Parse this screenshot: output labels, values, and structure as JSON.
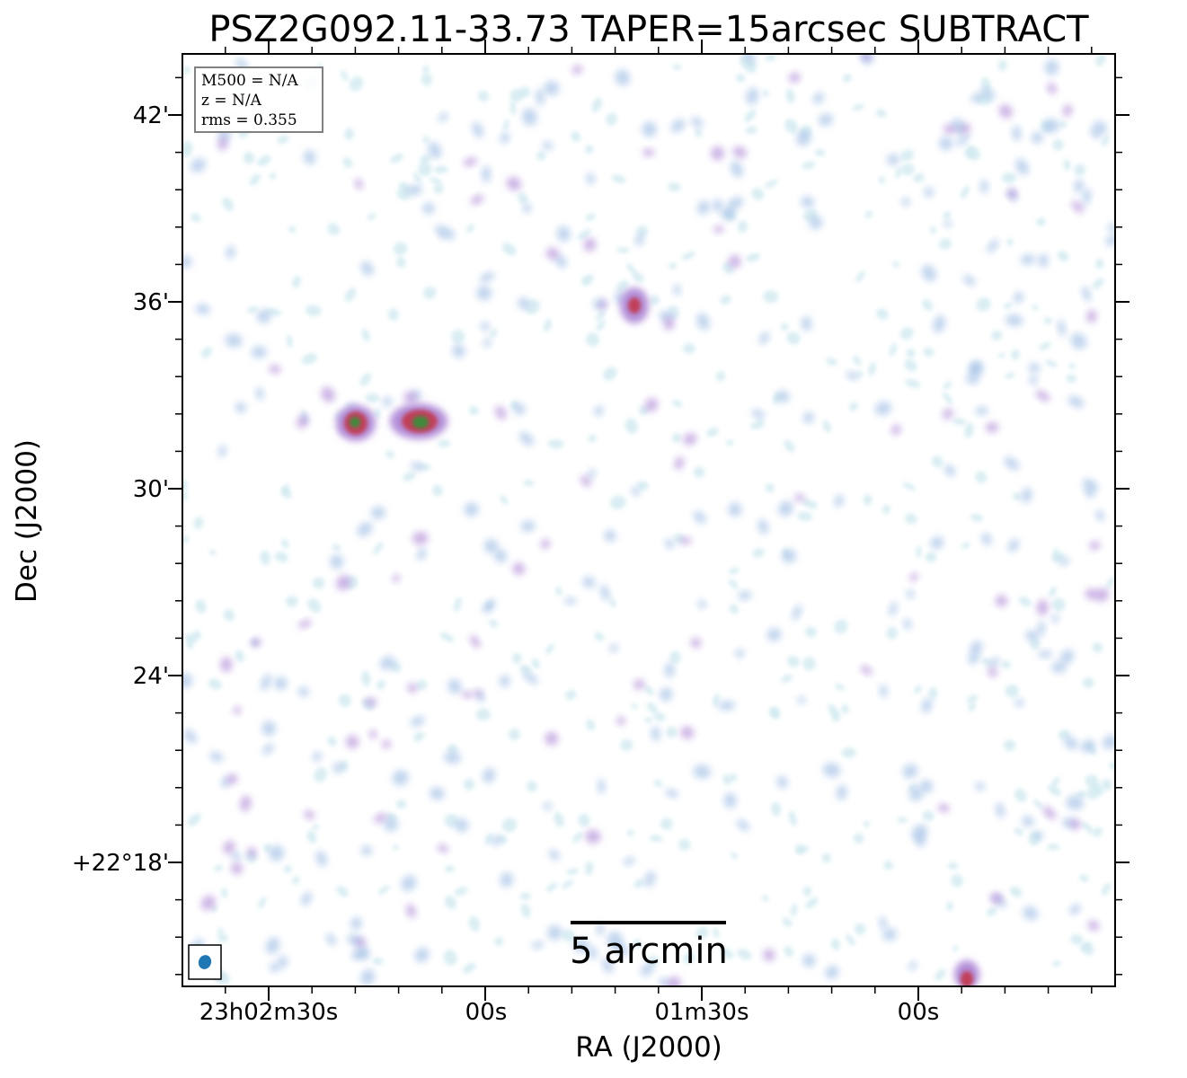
{
  "title": "PSZ2G092.11-33.73 TAPER=15arcsec SUBTRACT",
  "xlabel": "RA (J2000)",
  "ylabel": "Dec (J2000)",
  "x_ticks": [
    "23h02m30s",
    "00s",
    "01m30s",
    "00s"
  ],
  "y_ticks": [
    "42'",
    "36'",
    "30'",
    "24'",
    "+22°18'"
  ],
  "info": {
    "mass": "M500 = N/A",
    "redshift": "z = N/A",
    "rms": "rms = 0.355"
  },
  "scalebar_label": "5 arcmin",
  "colors": {
    "frame": "#000000",
    "beam": "#1f77b4",
    "noise_low": "#cde8ef",
    "noise_mid": "#a9c4e8",
    "noise_high": "#b38fd9",
    "source_peak": "#c0405a",
    "source_core": "#3f8a3a"
  }
}
